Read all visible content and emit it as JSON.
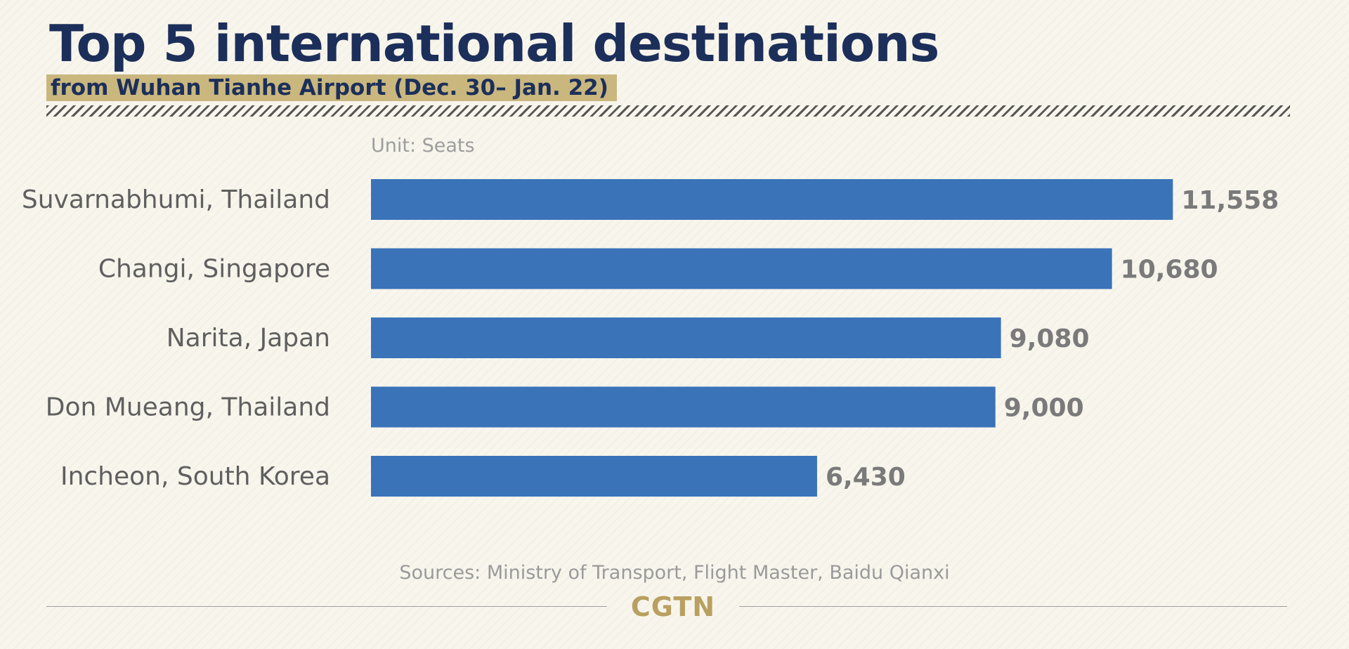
{
  "chart_data": {
    "type": "bar",
    "orientation": "horizontal",
    "title": "Top 5 international destinations",
    "subtitle": "from Wuhan Tianhe Airport (Dec. 30– Jan. 22)",
    "unit_label": "Unit: Seats",
    "categories": [
      "Suvarnabhumi, Thailand",
      "Changi, Singapore",
      "Narita, Japan",
      "Don Mueang, Thailand",
      "Incheon, South Korea"
    ],
    "values": [
      11558,
      10680,
      9080,
      9000,
      6430
    ],
    "value_labels": [
      "11,558",
      "10,680",
      "9,080",
      "9,000",
      "6,430"
    ],
    "xlim": [
      0,
      12000
    ],
    "grid": false,
    "legend": "none",
    "bar_color": "#3b73b9"
  },
  "source": "Sources: Ministry of Transport, Flight Master, Baidu Qianxi",
  "logo": "CGTN",
  "colors": {
    "title": "#1c2f5a",
    "subtitle_highlight": "#c9b77e",
    "logo": "#b9a060",
    "background": "#f8f5ec"
  }
}
